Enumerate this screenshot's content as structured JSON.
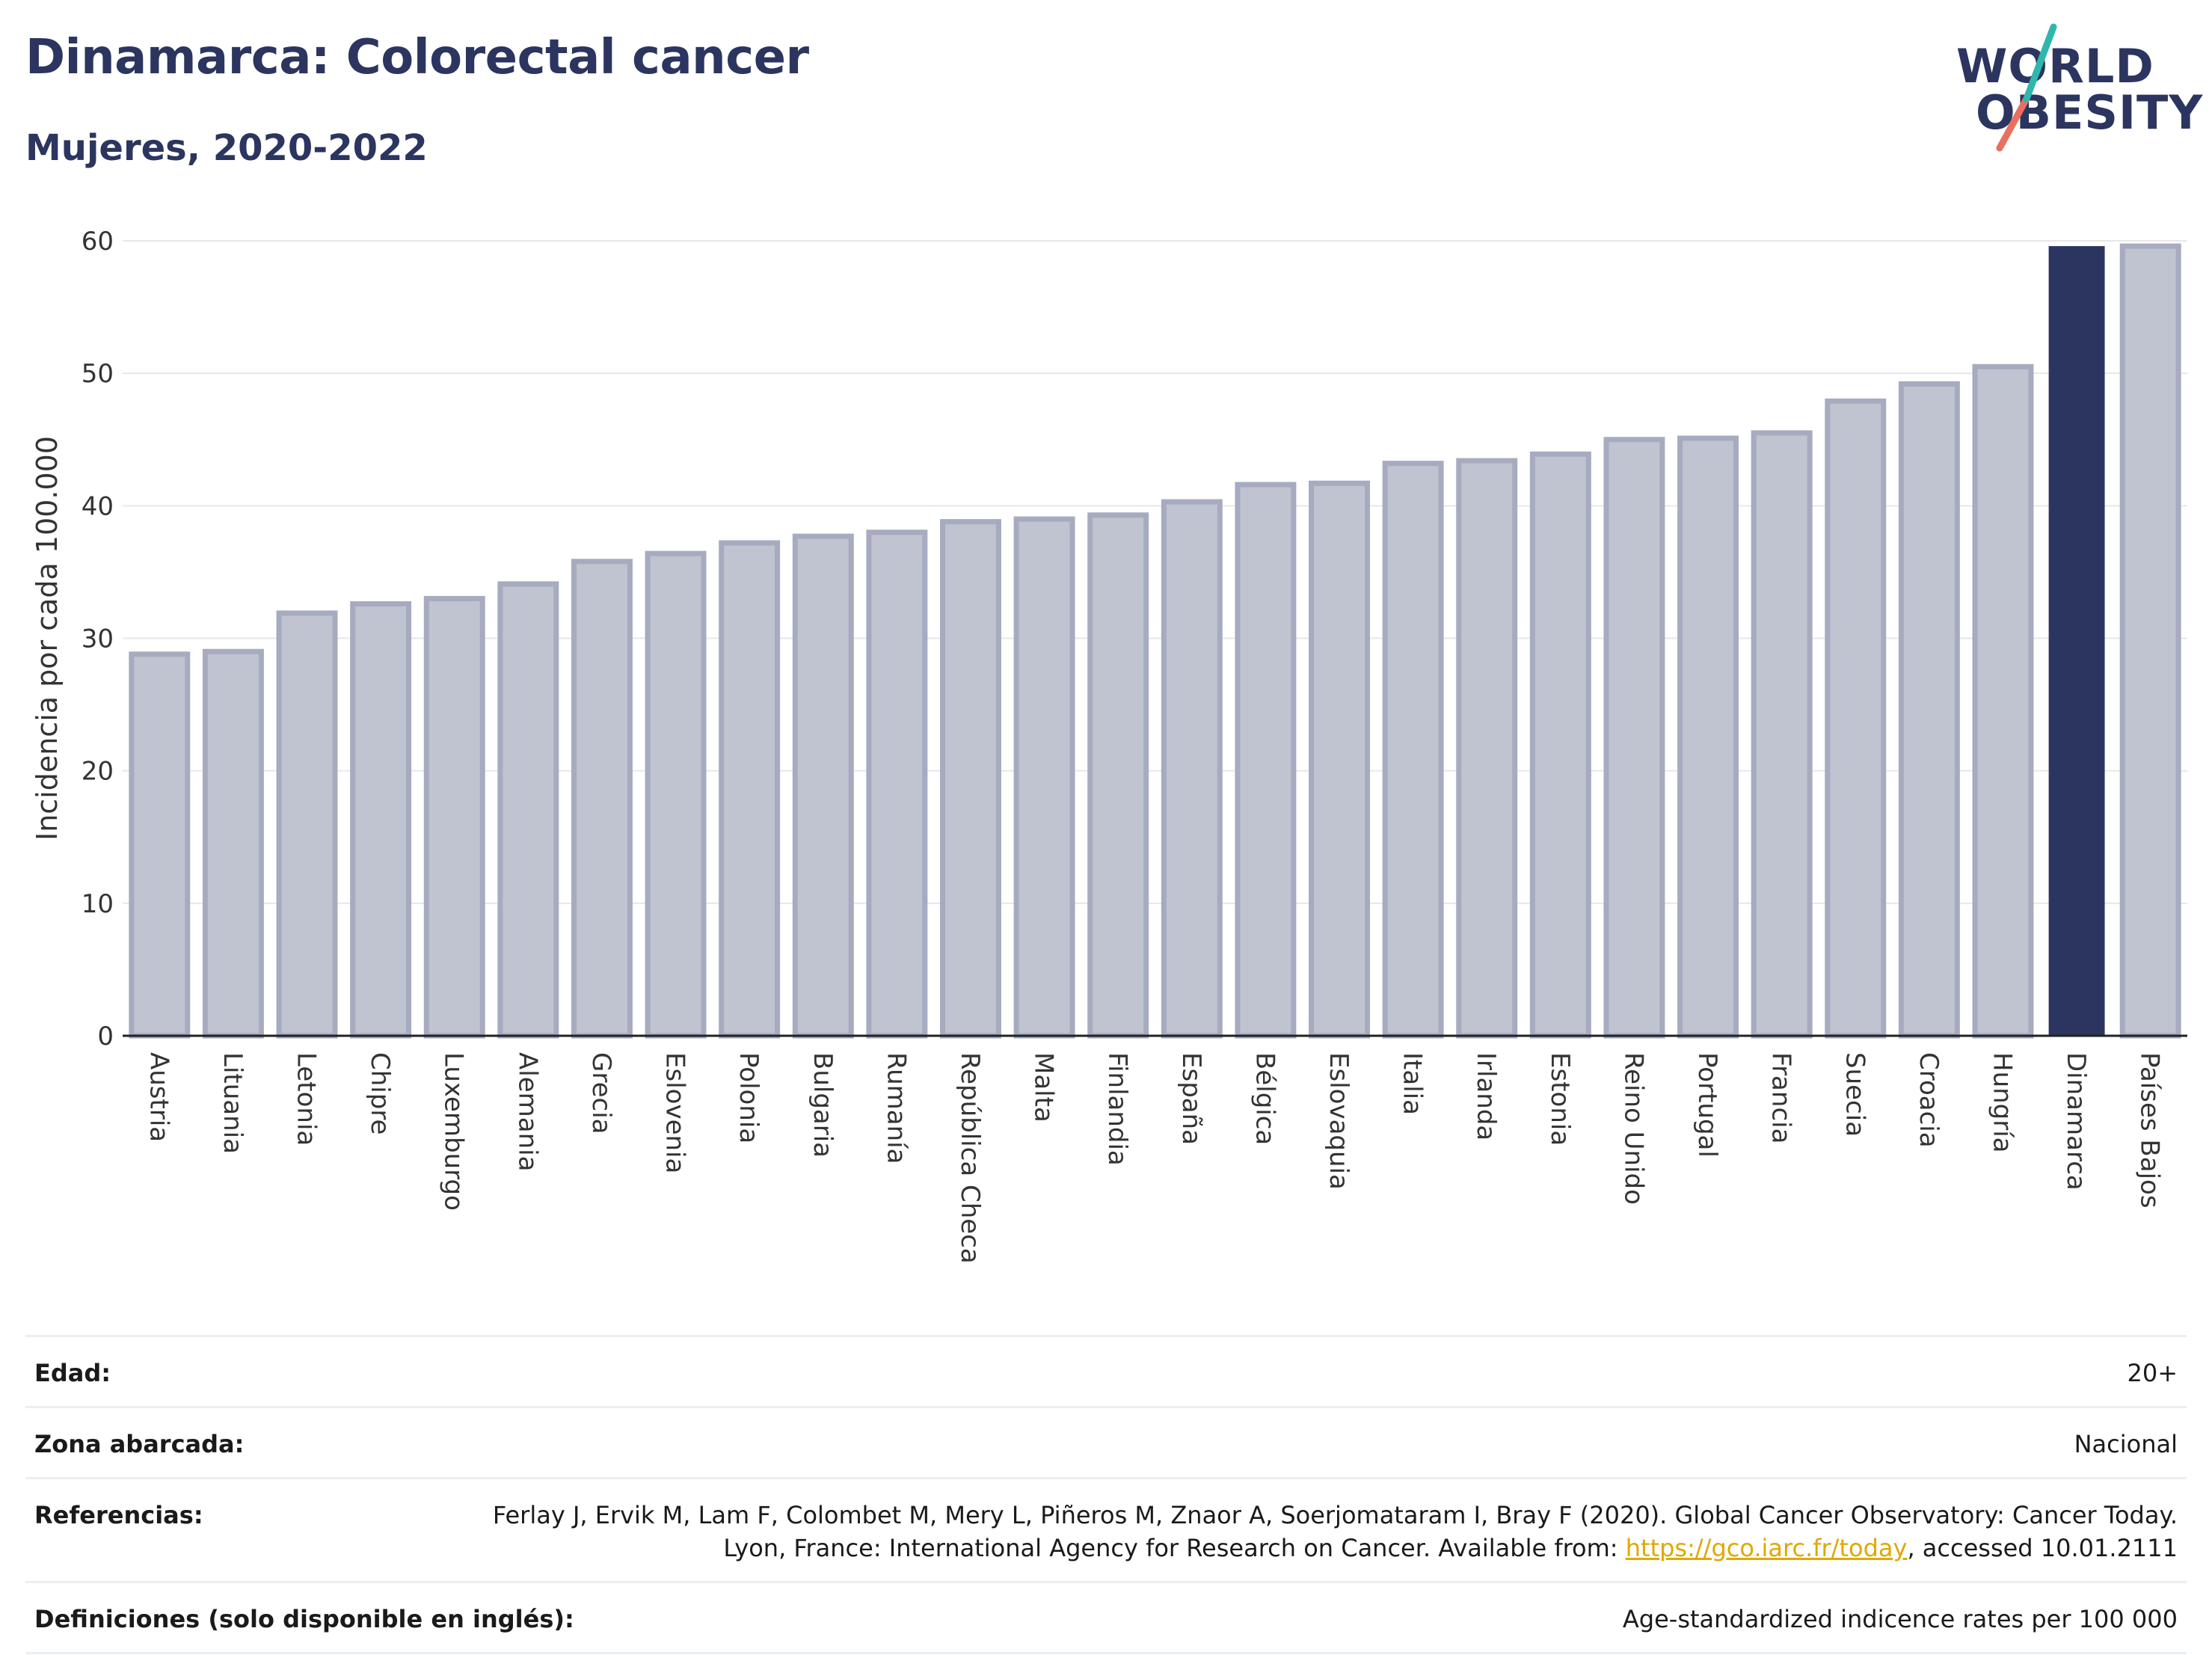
{
  "header": {
    "title": "Dinamarca: Colorectal cancer",
    "subtitle": "Mujeres, 2020-2022"
  },
  "logo": {
    "line1": "WORLD",
    "line2": "OBESITY"
  },
  "colors": {
    "bar": "#c0c3d0",
    "bar_border": "#a6abc0",
    "highlight": "#2b355f",
    "grid": "#e6e7ec",
    "axis": "#333333"
  },
  "chart_data": {
    "type": "bar",
    "title": "Dinamarca: Colorectal cancer",
    "subtitle": "Mujeres, 2020-2022",
    "ylabel": "Incidencia por cada 100.000",
    "xlabel": "",
    "ylim": [
      0,
      60
    ],
    "yticks": [
      0,
      10,
      20,
      30,
      40,
      50,
      60
    ],
    "grid": true,
    "highlight": "Dinamarca",
    "categories": [
      "Austria",
      "Lituania",
      "Letonia",
      "Chipre",
      "Luxemburgo",
      "Alemania",
      "Grecia",
      "Eslovenia",
      "Polonia",
      "Bulgaria",
      "Rumanía",
      "República Checa",
      "Malta",
      "Finlandia",
      "España",
      "Bélgica",
      "Eslovaquia",
      "Italia",
      "Irlanda",
      "Estonia",
      "Reino Unido",
      "Portugal",
      "Francia",
      "Suecia",
      "Croacia",
      "Hungría",
      "Dinamarca",
      "Países Bajos"
    ],
    "values": [
      28.8,
      29.0,
      31.9,
      32.6,
      33.0,
      34.1,
      35.8,
      36.4,
      37.2,
      37.7,
      38.0,
      38.8,
      39.0,
      39.3,
      40.3,
      41.6,
      41.7,
      43.2,
      43.4,
      43.9,
      45.0,
      45.1,
      45.5,
      47.9,
      49.2,
      50.5,
      59.6,
      59.6
    ]
  },
  "info": {
    "rows": [
      {
        "label": "Edad:",
        "value": "20+"
      },
      {
        "label": "Zona abarcada:",
        "value": "Nacional"
      },
      {
        "label": "Referencias:",
        "value": "Ferlay J, Ervik M, Lam F, Colombet M, Mery L, Piñeros M, Znaor A, Soerjomataram I, Bray F (2020). Global Cancer Observatory: Cancer Today. Lyon, France: International Agency for Research on Cancer. Available from: ",
        "link": "https://gco.iarc.fr/today",
        "suffix": ", accessed 10.01.2111"
      },
      {
        "label": "Definiciones (solo disponible en inglés):",
        "value": "Age-standardized indicence rates per 100 000"
      }
    ]
  }
}
